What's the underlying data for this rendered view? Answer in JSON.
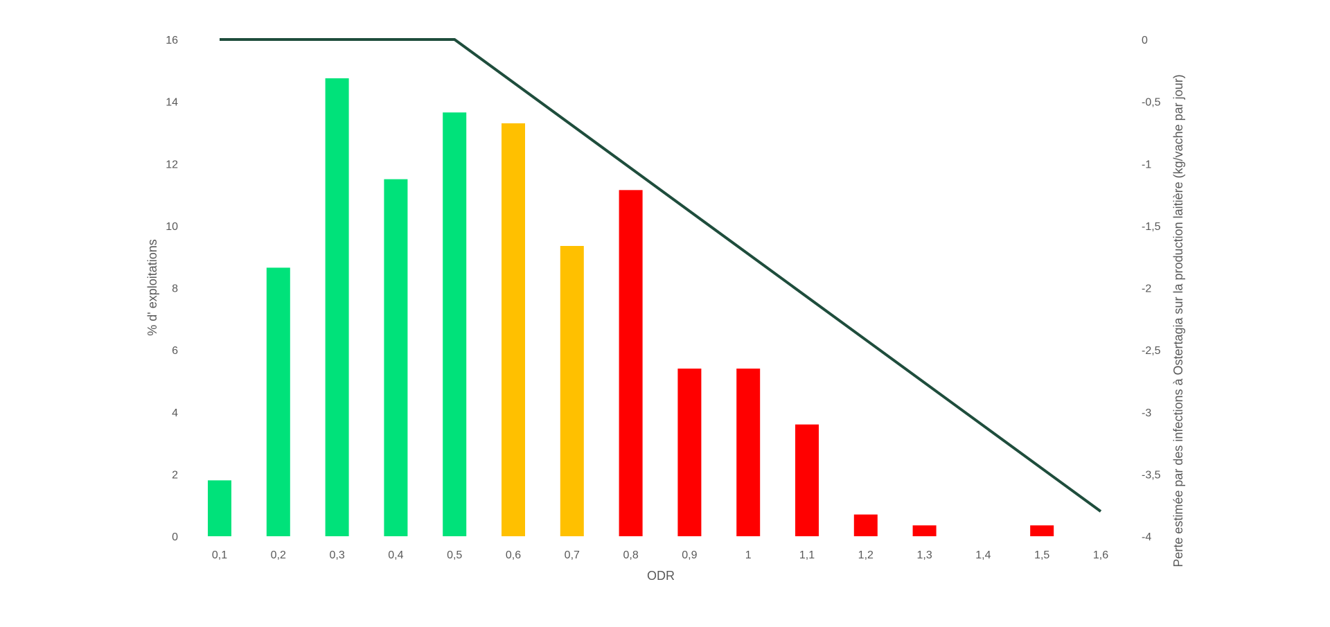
{
  "chart_data": {
    "type": "bar",
    "title": "",
    "xlabel": "ODR",
    "ylabel": "% d' exploitations",
    "y2label": "Perte estimée par des infections à Ostertagia sur la production laitière (kg/vache par jour)",
    "categories": [
      "0,1",
      "0,2",
      "0,3",
      "0,4",
      "0,5",
      "0,6",
      "0,7",
      "0,8",
      "0,9",
      "1",
      "1,1",
      "1,2",
      "1,3",
      "1,4",
      "1,5",
      "1,6"
    ],
    "ylim": [
      0,
      16
    ],
    "yticks": [
      "0",
      "2",
      "4",
      "6",
      "8",
      "10",
      "12",
      "14",
      "16"
    ],
    "y2lim": [
      -4,
      0
    ],
    "y2ticks": [
      "0",
      "-0,5",
      "-1",
      "-1,5",
      "-2",
      "-2,5",
      "-3",
      "-3,5",
      "-4"
    ],
    "grid": false,
    "series": [
      {
        "type": "bar",
        "values": [
          1.8,
          8.65,
          14.75,
          11.5,
          13.65,
          13.3,
          9.35,
          11.15,
          5.4,
          5.4,
          3.6,
          0.7,
          0.35,
          0,
          0.35,
          0
        ],
        "colors": [
          "#00e27a",
          "#00e27a",
          "#00e27a",
          "#00e27a",
          "#00e27a",
          "#ffc000",
          "#ffc000",
          "#ff0000",
          "#ff0000",
          "#ff0000",
          "#ff0000",
          "#ff0000",
          "#ff0000",
          "#ff0000",
          "#ff0000",
          "#ff0000"
        ]
      },
      {
        "type": "line",
        "axis": "secondary",
        "color": "#1e4d3c",
        "x": [
          "0,1",
          "0,5",
          "1,6"
        ],
        "values": [
          0,
          0,
          -3.8
        ]
      }
    ]
  }
}
